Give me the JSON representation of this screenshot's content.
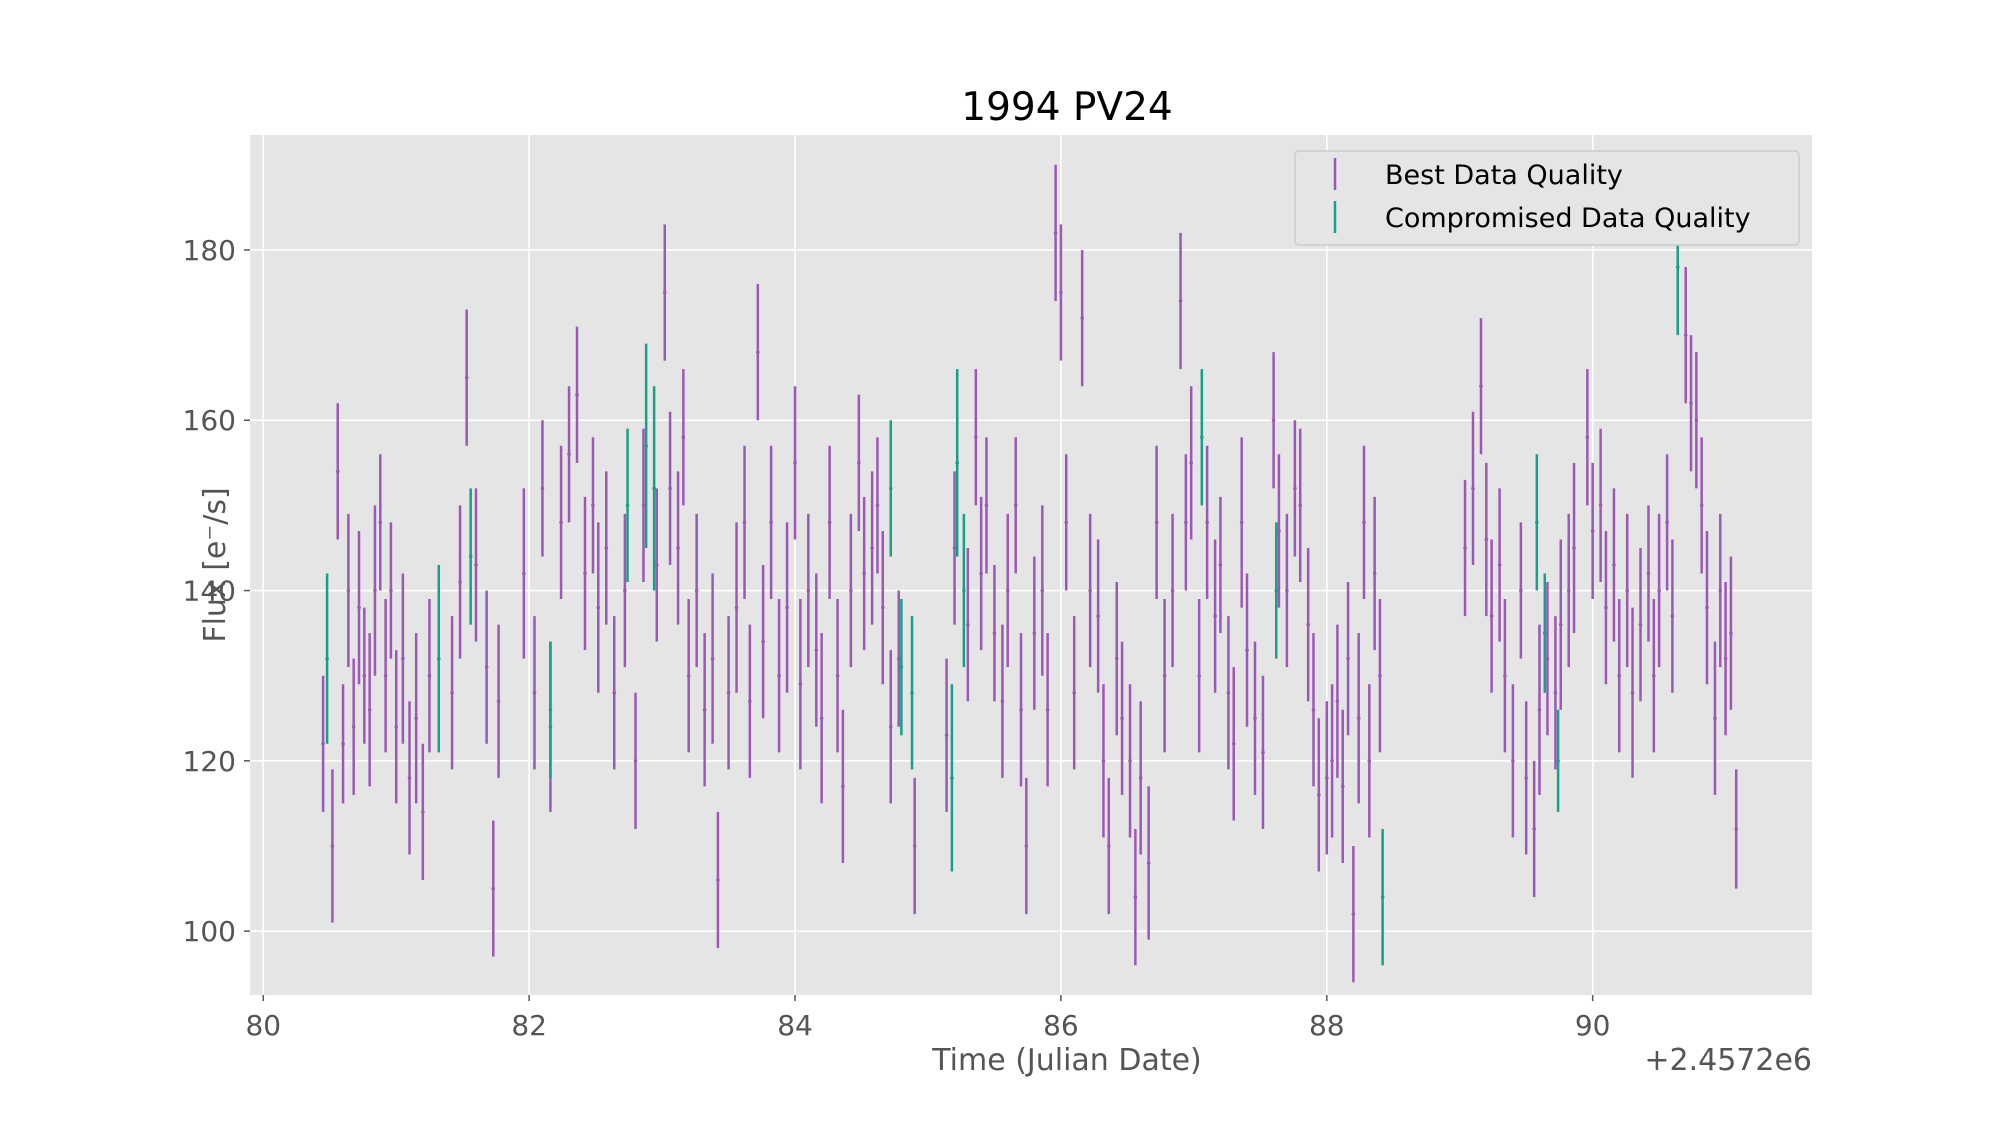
{
  "chart_data": {
    "type": "scatter",
    "title": "1994 PV24",
    "xlabel": "Time (Julian Date)",
    "ylabel": "Flux [e⁻/s]",
    "x_offset_label": "+2.4572e6",
    "xlim": [
      79.9,
      91.65
    ],
    "ylim": [
      92.5,
      193.5
    ],
    "xticks": [
      80,
      82,
      84,
      86,
      88,
      90
    ],
    "yticks": [
      100,
      120,
      140,
      160,
      180
    ],
    "grid": true,
    "legend": {
      "placement": "top-right",
      "entries": [
        {
          "label": "Best Data Quality",
          "color": "#9b59b6"
        },
        {
          "label": "Compromised Data Quality",
          "color": "#16a085"
        }
      ]
    },
    "series": [
      {
        "name": "Best Data Quality",
        "color": "#9b59b6",
        "points": [
          [
            80.45,
            122,
            8
          ],
          [
            80.52,
            110,
            9
          ],
          [
            80.56,
            154,
            8
          ],
          [
            80.6,
            122,
            7
          ],
          [
            80.64,
            140,
            9
          ],
          [
            80.68,
            124,
            8
          ],
          [
            80.72,
            138,
            9
          ],
          [
            80.76,
            130,
            8
          ],
          [
            80.8,
            126,
            9
          ],
          [
            80.84,
            140,
            10
          ],
          [
            80.88,
            148,
            8
          ],
          [
            80.92,
            130,
            9
          ],
          [
            80.96,
            140,
            8
          ],
          [
            81.0,
            124,
            9
          ],
          [
            81.05,
            132,
            10
          ],
          [
            81.1,
            118,
            9
          ],
          [
            81.15,
            125,
            10
          ],
          [
            81.2,
            114,
            8
          ],
          [
            81.25,
            130,
            9
          ],
          [
            81.42,
            128,
            9
          ],
          [
            81.48,
            141,
            9
          ],
          [
            81.53,
            165,
            8
          ],
          [
            81.6,
            143,
            9
          ],
          [
            81.68,
            131,
            9
          ],
          [
            81.73,
            105,
            8
          ],
          [
            81.77,
            127,
            9
          ],
          [
            81.96,
            142,
            10
          ],
          [
            82.04,
            128,
            9
          ],
          [
            82.1,
            152,
            8
          ],
          [
            82.16,
            124,
            10
          ],
          [
            82.24,
            148,
            9
          ],
          [
            82.3,
            156,
            8
          ],
          [
            82.36,
            163,
            8
          ],
          [
            82.42,
            142,
            9
          ],
          [
            82.48,
            150,
            8
          ],
          [
            82.52,
            138,
            10
          ],
          [
            82.58,
            145,
            9
          ],
          [
            82.64,
            128,
            9
          ],
          [
            82.72,
            140,
            9
          ],
          [
            82.8,
            120,
            8
          ],
          [
            82.86,
            150,
            9
          ],
          [
            82.96,
            143,
            9
          ],
          [
            83.02,
            175,
            8
          ],
          [
            83.06,
            152,
            9
          ],
          [
            83.12,
            145,
            9
          ],
          [
            83.16,
            158,
            8
          ],
          [
            83.2,
            130,
            9
          ],
          [
            83.26,
            140,
            9
          ],
          [
            83.32,
            126,
            9
          ],
          [
            83.38,
            132,
            10
          ],
          [
            83.42,
            106,
            8
          ],
          [
            83.5,
            128,
            9
          ],
          [
            83.56,
            138,
            10
          ],
          [
            83.62,
            148,
            9
          ],
          [
            83.66,
            127,
            9
          ],
          [
            83.72,
            168,
            8
          ],
          [
            83.76,
            134,
            9
          ],
          [
            83.82,
            148,
            9
          ],
          [
            83.88,
            130,
            9
          ],
          [
            83.94,
            138,
            10
          ],
          [
            84.0,
            155,
            9
          ],
          [
            84.04,
            129,
            10
          ],
          [
            84.1,
            140,
            9
          ],
          [
            84.16,
            133,
            9
          ],
          [
            84.2,
            125,
            10
          ],
          [
            84.26,
            148,
            9
          ],
          [
            84.32,
            130,
            9
          ],
          [
            84.36,
            117,
            9
          ],
          [
            84.42,
            140,
            9
          ],
          [
            84.48,
            155,
            8
          ],
          [
            84.52,
            142,
            9
          ],
          [
            84.58,
            145,
            9
          ],
          [
            84.62,
            150,
            8
          ],
          [
            84.66,
            138,
            9
          ],
          [
            84.72,
            124,
            9
          ],
          [
            84.78,
            132,
            8
          ],
          [
            84.9,
            110,
            8
          ],
          [
            85.14,
            123,
            9
          ],
          [
            85.2,
            145,
            9
          ],
          [
            85.3,
            136,
            9
          ],
          [
            85.36,
            158,
            8
          ],
          [
            85.4,
            142,
            9
          ],
          [
            85.44,
            150,
            8
          ],
          [
            85.5,
            135,
            8
          ],
          [
            85.56,
            127,
            9
          ],
          [
            85.6,
            140,
            9
          ],
          [
            85.66,
            150,
            8
          ],
          [
            85.7,
            126,
            9
          ],
          [
            85.74,
            110,
            8
          ],
          [
            85.8,
            135,
            9
          ],
          [
            85.86,
            140,
            10
          ],
          [
            85.9,
            126,
            9
          ],
          [
            85.96,
            182,
            8
          ],
          [
            86.0,
            175,
            8
          ],
          [
            86.04,
            148,
            8
          ],
          [
            86.1,
            128,
            9
          ],
          [
            86.16,
            172,
            8
          ],
          [
            86.22,
            140,
            9
          ],
          [
            86.28,
            137,
            9
          ],
          [
            86.32,
            120,
            9
          ],
          [
            86.36,
            110,
            8
          ],
          [
            86.42,
            132,
            9
          ],
          [
            86.46,
            125,
            9
          ],
          [
            86.52,
            120,
            9
          ],
          [
            86.56,
            104,
            8
          ],
          [
            86.6,
            118,
            9
          ],
          [
            86.66,
            108,
            9
          ],
          [
            86.72,
            148,
            9
          ],
          [
            86.78,
            130,
            9
          ],
          [
            86.84,
            140,
            9
          ],
          [
            86.9,
            174,
            8
          ],
          [
            86.94,
            148,
            8
          ],
          [
            86.98,
            155,
            9
          ],
          [
            87.04,
            130,
            9
          ],
          [
            87.1,
            148,
            9
          ],
          [
            87.16,
            137,
            9
          ],
          [
            87.2,
            143,
            8
          ],
          [
            87.26,
            128,
            9
          ],
          [
            87.3,
            122,
            9
          ],
          [
            87.36,
            148,
            10
          ],
          [
            87.4,
            133,
            9
          ],
          [
            87.46,
            125,
            9
          ],
          [
            87.52,
            121,
            9
          ],
          [
            87.6,
            160,
            8
          ],
          [
            87.64,
            147,
            9
          ],
          [
            87.7,
            140,
            9
          ],
          [
            87.76,
            152,
            8
          ],
          [
            87.8,
            150,
            9
          ],
          [
            87.86,
            136,
            9
          ],
          [
            87.9,
            126,
            9
          ],
          [
            87.94,
            116,
            9
          ],
          [
            88.0,
            118,
            9
          ],
          [
            88.04,
            120,
            9
          ],
          [
            88.08,
            127,
            9
          ],
          [
            88.12,
            117,
            9
          ],
          [
            88.16,
            132,
            9
          ],
          [
            88.2,
            102,
            8
          ],
          [
            88.24,
            125,
            10
          ],
          [
            88.28,
            148,
            9
          ],
          [
            88.32,
            120,
            9
          ],
          [
            88.36,
            142,
            9
          ],
          [
            88.4,
            130,
            9
          ],
          [
            89.04,
            145,
            8
          ],
          [
            89.1,
            152,
            9
          ],
          [
            89.16,
            164,
            8
          ],
          [
            89.2,
            146,
            9
          ],
          [
            89.24,
            137,
            9
          ],
          [
            89.3,
            143,
            9
          ],
          [
            89.34,
            130,
            9
          ],
          [
            89.4,
            120,
            9
          ],
          [
            89.46,
            140,
            8
          ],
          [
            89.5,
            118,
            9
          ],
          [
            89.56,
            112,
            8
          ],
          [
            89.6,
            126,
            10
          ],
          [
            89.66,
            132,
            9
          ],
          [
            89.72,
            128,
            9
          ],
          [
            89.76,
            136,
            10
          ],
          [
            89.82,
            140,
            9
          ],
          [
            89.86,
            145,
            10
          ],
          [
            89.96,
            158,
            8
          ],
          [
            90.0,
            147,
            8
          ],
          [
            90.06,
            150,
            9
          ],
          [
            90.1,
            138,
            9
          ],
          [
            90.16,
            143,
            9
          ],
          [
            90.2,
            130,
            9
          ],
          [
            90.26,
            140,
            9
          ],
          [
            90.3,
            128,
            10
          ],
          [
            90.36,
            136,
            9
          ],
          [
            90.42,
            142,
            8
          ],
          [
            90.46,
            130,
            9
          ],
          [
            90.5,
            140,
            9
          ],
          [
            90.56,
            148,
            8
          ],
          [
            90.6,
            137,
            9
          ],
          [
            90.7,
            170,
            8
          ],
          [
            90.74,
            162,
            8
          ],
          [
            90.78,
            160,
            8
          ],
          [
            90.82,
            150,
            8
          ],
          [
            90.86,
            138,
            9
          ],
          [
            90.92,
            125,
            9
          ],
          [
            90.96,
            140,
            9
          ],
          [
            91.0,
            132,
            9
          ],
          [
            91.04,
            135,
            9
          ],
          [
            91.08,
            112,
            7
          ]
        ]
      },
      {
        "name": "Compromised Data Quality",
        "color": "#16a085",
        "points": [
          [
            80.48,
            132,
            10
          ],
          [
            81.32,
            132,
            11
          ],
          [
            81.56,
            144,
            8
          ],
          [
            82.16,
            126,
            8
          ],
          [
            82.74,
            150,
            9
          ],
          [
            82.88,
            157,
            12
          ],
          [
            82.94,
            152,
            12
          ],
          [
            84.72,
            152,
            8
          ],
          [
            84.8,
            131,
            8
          ],
          [
            84.88,
            128,
            9
          ],
          [
            85.18,
            118,
            11
          ],
          [
            85.22,
            155,
            11
          ],
          [
            85.27,
            140,
            9
          ],
          [
            87.06,
            158,
            8
          ],
          [
            87.62,
            140,
            8
          ],
          [
            88.42,
            104,
            8
          ],
          [
            89.58,
            148,
            8
          ],
          [
            89.64,
            135,
            7
          ],
          [
            89.74,
            120,
            6
          ],
          [
            90.64,
            178,
            8
          ]
        ]
      }
    ]
  }
}
